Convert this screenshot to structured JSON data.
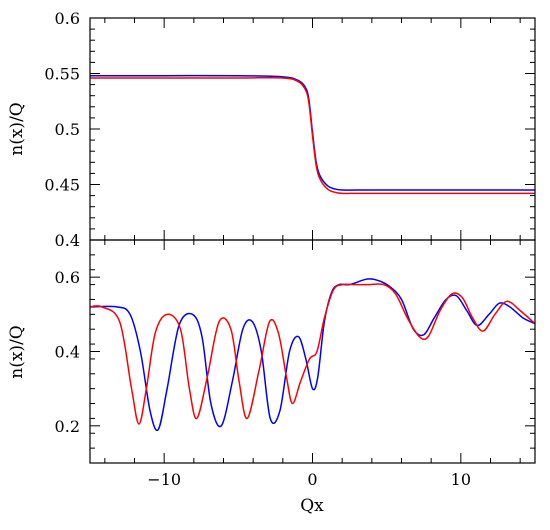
{
  "chart_data": [
    {
      "type": "line",
      "panel": "top",
      "ylabel": "n(x)/Q",
      "xlim": [
        -15,
        15
      ],
      "ylim": [
        0.4,
        0.6
      ],
      "y_ticks": [
        0.4,
        0.45,
        0.5,
        0.55,
        0.6
      ],
      "y_tick_labels": [
        "0.4",
        "0.45",
        "0.5",
        "0.55",
        "0.6"
      ],
      "series": [
        {
          "color": "#0000ff",
          "x": [
            -15,
            -10,
            -5,
            -2,
            -1,
            -0.5,
            -0.25,
            0,
            0.25,
            0.5,
            1,
            1.5,
            2,
            3,
            5,
            10,
            15
          ],
          "y": [
            0.548,
            0.548,
            0.548,
            0.547,
            0.544,
            0.538,
            0.527,
            0.497,
            0.47,
            0.458,
            0.449,
            0.446,
            0.445,
            0.445,
            0.445,
            0.445,
            0.445
          ]
        },
        {
          "color": "#ff0000",
          "x": [
            -15,
            -10,
            -5,
            -2,
            -1,
            -0.5,
            -0.25,
            0,
            0.25,
            0.5,
            1,
            1.5,
            2,
            3,
            5,
            10,
            15
          ],
          "y": [
            0.546,
            0.546,
            0.546,
            0.546,
            0.543,
            0.536,
            0.524,
            0.494,
            0.467,
            0.455,
            0.446,
            0.443,
            0.442,
            0.442,
            0.442,
            0.442,
            0.442
          ]
        }
      ]
    },
    {
      "type": "line",
      "panel": "bottom",
      "xlabel": "Qx",
      "ylabel": "n(x)/Q",
      "xlim": [
        -15,
        15
      ],
      "ylim": [
        0.1,
        0.7
      ],
      "x_ticks": [
        -10,
        0,
        10
      ],
      "x_tick_labels": [
        "−10",
        "0",
        "10"
      ],
      "y_ticks": [
        0.2,
        0.4,
        0.6
      ],
      "y_tick_labels": [
        "0.2",
        "0.4",
        "0.6"
      ],
      "series": [
        {
          "color": "#0000ff",
          "x": [
            -15,
            -13.2,
            -12.3,
            -11.6,
            -10.95,
            -10.4,
            -9.8,
            -9.0,
            -8.1,
            -7.45,
            -6.85,
            -6.15,
            -5.4,
            -4.7,
            -4.05,
            -3.45,
            -2.85,
            -2.2,
            -1.55,
            -0.95,
            -0.45,
            0,
            0.35,
            0.8,
            1.3,
            1.8,
            2.5,
            3.7,
            4.5,
            5.2,
            6.0,
            6.8,
            7.5,
            8.2,
            9.0,
            9.7,
            10.4,
            11.1,
            11.9,
            12.6,
            13.3,
            14.2,
            15
          ],
          "y": [
            0.52,
            0.52,
            0.5,
            0.4,
            0.24,
            0.19,
            0.3,
            0.47,
            0.5,
            0.44,
            0.26,
            0.2,
            0.32,
            0.46,
            0.48,
            0.4,
            0.22,
            0.24,
            0.4,
            0.44,
            0.38,
            0.3,
            0.33,
            0.48,
            0.56,
            0.58,
            0.58,
            0.595,
            0.59,
            0.575,
            0.54,
            0.46,
            0.445,
            0.49,
            0.54,
            0.55,
            0.51,
            0.47,
            0.5,
            0.53,
            0.52,
            0.49,
            0.475
          ]
        },
        {
          "color": "#ff0000",
          "x": [
            -15,
            -14.2,
            -13.0,
            -12.2,
            -11.7,
            -11.2,
            -10.6,
            -9.8,
            -8.9,
            -8.3,
            -7.8,
            -7.1,
            -6.3,
            -5.5,
            -4.95,
            -4.4,
            -3.6,
            -2.9,
            -2.3,
            -1.75,
            -1.35,
            -0.8,
            -0.2,
            0.3,
            0.8,
            1.4,
            2.0,
            2.8,
            3.8,
            4.8,
            5.6,
            6.4,
            7.2,
            7.8,
            8.6,
            9.4,
            10.1,
            10.8,
            11.5,
            12.3,
            13.1,
            14.0,
            15
          ],
          "y": [
            0.52,
            0.52,
            0.48,
            0.3,
            0.205,
            0.3,
            0.45,
            0.5,
            0.46,
            0.3,
            0.22,
            0.33,
            0.48,
            0.46,
            0.32,
            0.22,
            0.35,
            0.48,
            0.45,
            0.33,
            0.26,
            0.32,
            0.38,
            0.4,
            0.49,
            0.565,
            0.58,
            0.58,
            0.58,
            0.58,
            0.555,
            0.49,
            0.44,
            0.44,
            0.51,
            0.555,
            0.545,
            0.49,
            0.455,
            0.5,
            0.535,
            0.51,
            0.475
          ]
        }
      ]
    }
  ]
}
